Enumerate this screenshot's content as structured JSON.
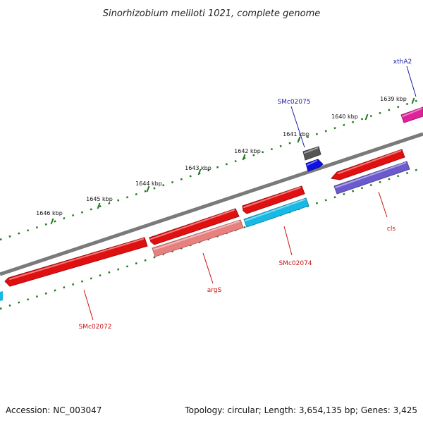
{
  "title": "Sinorhizobium meliloti 1021, complete genome",
  "footer": {
    "accession": "Accession: NC_003047",
    "summary": "Topology: circular; Length: 3,654,135 bp; Genes: 3,425"
  },
  "colors": {
    "backbone": "#7a7a7a",
    "tick": "#1e7a1e",
    "label_forward": "#1a1aaa",
    "label_reverse": "#cc1111"
  },
  "ticks": [
    "1639 kbp",
    "1640 kbp",
    "1641 kbp",
    "1642 kbp",
    "1643 kbp",
    "1644 kbp",
    "1645 kbp",
    "1646 kbp"
  ],
  "genes": [
    {
      "name": "xthA2",
      "strand": "forward",
      "color": "#e0229a"
    },
    {
      "name": "SMc02075",
      "strand": "forward",
      "color": "#555555"
    },
    {
      "name": "SMc02075",
      "strand": "forward",
      "color": "#1010e0"
    },
    {
      "name": "cls",
      "strand": "reverse",
      "color": "#e01010"
    },
    {
      "name": "cls",
      "strand": "reverse",
      "color": "#6a5acd"
    },
    {
      "name": "SMc02074",
      "strand": "reverse",
      "color": "#e01010"
    },
    {
      "name": "SMc02074",
      "strand": "reverse",
      "color": "#19b9e6"
    },
    {
      "name": "argS",
      "strand": "reverse",
      "color": "#e01010"
    },
    {
      "name": "argS",
      "strand": "reverse",
      "color": "#e88080"
    },
    {
      "name": "SMc02072",
      "strand": "reverse",
      "color": "#e01010"
    }
  ],
  "labels": [
    "xthA2",
    "SMc02075",
    "cls",
    "SMc02074",
    "argS",
    "SMc02072"
  ]
}
